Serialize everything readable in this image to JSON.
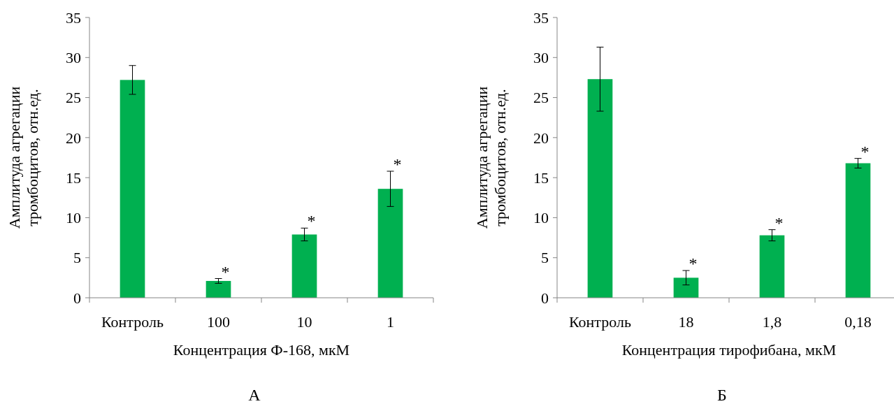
{
  "chart_data": [
    {
      "type": "bar",
      "title": "А",
      "xlabel": "Концентрация Ф-168, мкМ",
      "ylabel": "Амплитуда агрегации тромбоцитов, отн.ед.",
      "categories": [
        "Контроль",
        "100",
        "10",
        "1"
      ],
      "values": [
        27.2,
        2.1,
        7.9,
        13.6
      ],
      "errors": [
        1.8,
        0.3,
        0.8,
        2.2
      ],
      "color": "#00b050",
      "ylim": [
        0,
        35
      ],
      "yticks": [
        0,
        5,
        10,
        15,
        20,
        25,
        30,
        35
      ],
      "grid": false,
      "annotations": [
        {
          "text": "*",
          "x": "100",
          "y": 2.4
        },
        {
          "text": "*",
          "x": "10",
          "y": 8.7
        },
        {
          "text": "*",
          "x": "1",
          "y": 15.8
        }
      ]
    },
    {
      "type": "bar",
      "title": "Б",
      "xlabel": "Концентрация тирофибана, мкМ",
      "ylabel": "Амплитуда агрегации тромбоцитов, отн.ед.",
      "categories": [
        "Контроль",
        "18",
        "1,8",
        "0,18"
      ],
      "values": [
        27.3,
        2.5,
        7.8,
        16.8
      ],
      "errors": [
        4.0,
        0.9,
        0.7,
        0.6
      ],
      "color": "#00b050",
      "ylim": [
        0,
        35
      ],
      "yticks": [
        0,
        5,
        10,
        15,
        20,
        25,
        30,
        35
      ],
      "grid": false,
      "annotations": [
        {
          "text": "*",
          "x": "18",
          "y": 3.4
        },
        {
          "text": "*",
          "x": "1,8",
          "y": 8.5
        },
        {
          "text": "*",
          "x": "0,18",
          "y": 17.4
        }
      ]
    }
  ]
}
